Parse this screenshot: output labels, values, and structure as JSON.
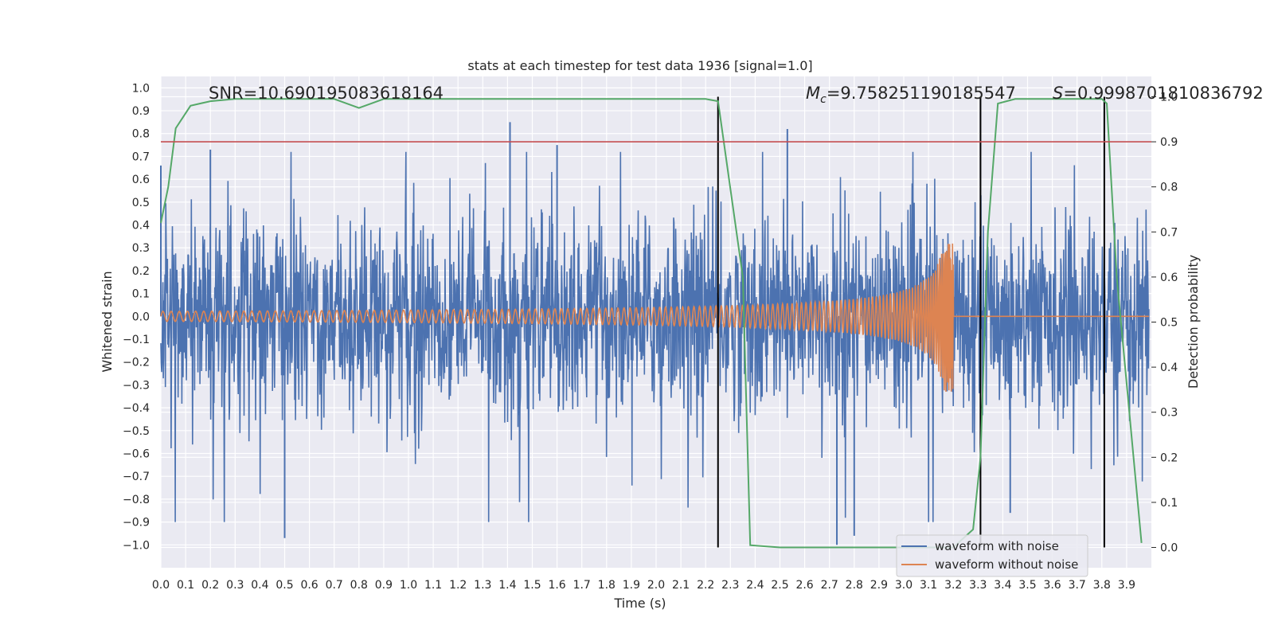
{
  "chart_data": {
    "type": "line",
    "title": "stats at each timestep for test data 1936 [signal=1.0]",
    "xlabel": "Time (s)",
    "ylabel": "Whitened strain",
    "y2label": "Detection probability",
    "xlim": [
      0.0,
      4.0
    ],
    "ylim": [
      -1.1,
      1.05
    ],
    "y2lim": [
      -0.045,
      1.045
    ],
    "x_ticks": [
      "0.0",
      "0.1",
      "0.2",
      "0.3",
      "0.4",
      "0.5",
      "0.6",
      "0.7",
      "0.8",
      "0.9",
      "1.0",
      "1.1",
      "1.2",
      "1.3",
      "1.4",
      "1.5",
      "1.6",
      "1.7",
      "1.8",
      "1.9",
      "2.0",
      "2.1",
      "2.2",
      "2.3",
      "2.4",
      "2.5",
      "2.6",
      "2.7",
      "2.8",
      "2.9",
      "3.0",
      "3.1",
      "3.2",
      "3.3",
      "3.4",
      "3.5",
      "3.6",
      "3.7",
      "3.8",
      "3.9"
    ],
    "y_ticks": [
      "1.0",
      "0.9",
      "0.8",
      "0.7",
      "0.6",
      "0.5",
      "0.4",
      "0.3",
      "0.2",
      "0.1",
      "0.0",
      "−0.1",
      "−0.2",
      "−0.3",
      "−0.4",
      "−0.5",
      "−0.6",
      "−0.7",
      "−0.8",
      "−0.9",
      "−1.0"
    ],
    "y2_ticks": [
      "1.0",
      "0.9",
      "0.8",
      "0.7",
      "0.6",
      "0.5",
      "0.4",
      "0.3",
      "0.2",
      "0.1",
      "0.0"
    ],
    "annotations": {
      "snr": "SNR=10.690195083618164",
      "mc_symbol": "M",
      "mc_sub": "c",
      "mc_value": "=9.758251190185547",
      "s_symbol": "S",
      "s_value": "=0.9998701810836792"
    },
    "threshold": {
      "axis": "y2",
      "value": 0.9,
      "color": "#c44e52"
    },
    "vertical_markers": [
      2.25,
      3.31,
      3.81
    ],
    "noise_series": {
      "name": "waveform with noise",
      "color": "#4c72b0",
      "description_values": "dense noisy whitened strain, amplitude mostly within -0.6..0.7",
      "peaks": [
        {
          "x": 0.0,
          "y": 0.66
        },
        {
          "x": 0.2,
          "y": 0.73
        },
        {
          "x": 0.5,
          "y": -0.97
        },
        {
          "x": 1.41,
          "y": 0.85
        },
        {
          "x": 1.6,
          "y": 0.75
        },
        {
          "x": 2.53,
          "y": 0.82
        },
        {
          "x": 2.73,
          "y": -1.0
        },
        {
          "x": 2.8,
          "y": -0.96
        },
        {
          "x": 3.43,
          "y": -0.86
        }
      ]
    },
    "clean_series": {
      "name": "waveform without noise",
      "color": "#dd8452",
      "description_values": "chirp with amplitude 0.02 rising to ~0.3 at merger t=3.2, then 0"
    },
    "probability_series": {
      "name": "detection probability",
      "color": "#55a868",
      "x": [
        0.0,
        0.03,
        0.06,
        0.12,
        0.2,
        0.3,
        0.7,
        0.8,
        0.9,
        1.0,
        2.2,
        2.25,
        2.35,
        2.38,
        2.5,
        3.2,
        3.28,
        3.31,
        3.34,
        3.38,
        3.45,
        3.8,
        3.82,
        3.86,
        3.96
      ],
      "y": [
        0.72,
        0.8,
        0.93,
        0.98,
        0.99,
        0.995,
        0.995,
        0.975,
        0.995,
        0.995,
        0.995,
        0.99,
        0.6,
        0.005,
        0.0,
        0.0,
        0.04,
        0.2,
        0.7,
        0.985,
        0.995,
        0.995,
        0.985,
        0.6,
        0.01
      ]
    },
    "legend": {
      "position": "lower-right",
      "items": [
        {
          "label": "waveform with noise",
          "color": "#4c72b0"
        },
        {
          "label": "waveform without noise",
          "color": "#dd8452"
        }
      ]
    }
  }
}
